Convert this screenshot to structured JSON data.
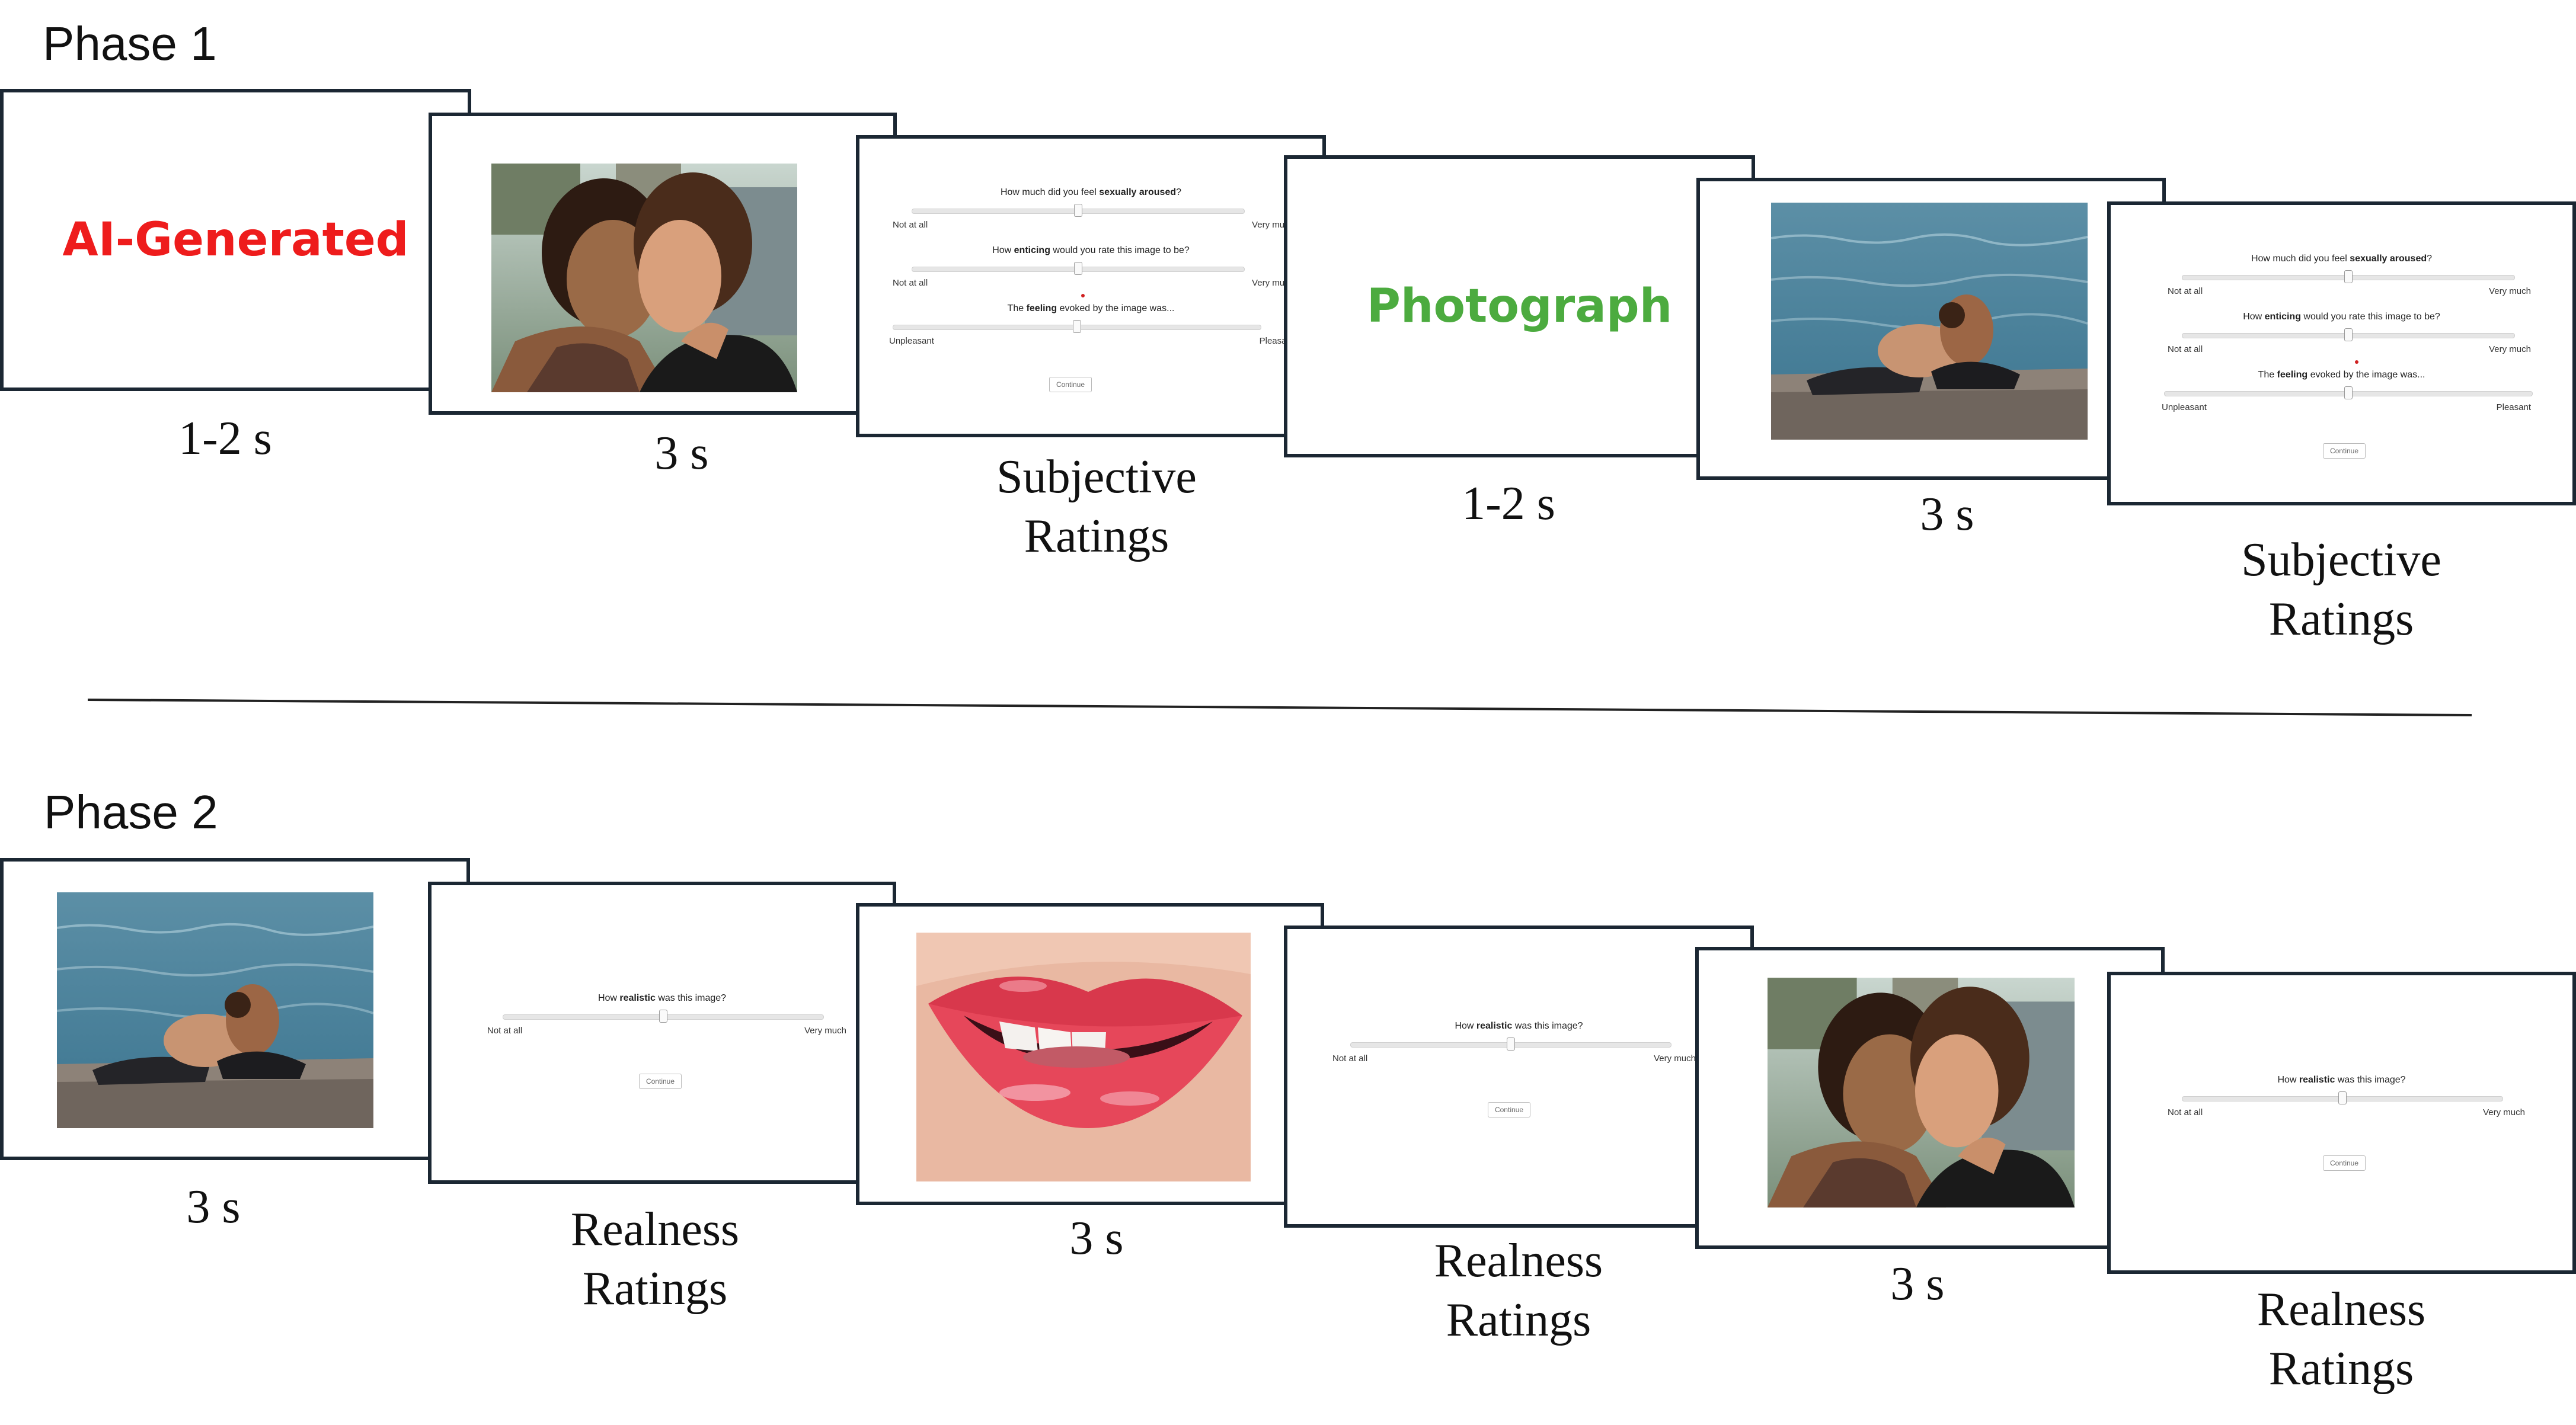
{
  "phase1": {
    "title": "Phase 1",
    "cue_ai": {
      "text": "AI-Generated",
      "color": "#ee1c1c"
    },
    "cue_photo": {
      "text": "Photograph",
      "color": "#4cab3f"
    },
    "captions": {
      "cue_ai": "1-2 s",
      "image_1": "3 s",
      "ratings_1_line1": "Subjective",
      "ratings_1_line2": "Ratings",
      "cue_photo": "1-2 s",
      "image_2": "3 s",
      "ratings_2_line1": "Subjective",
      "ratings_2_line2": "Ratings"
    }
  },
  "phase2": {
    "title": "Phase 2",
    "captions": {
      "image_1": "3 s",
      "ratings_1_line1": "Realness",
      "ratings_1_line2": "Ratings",
      "image_2": "3 s",
      "ratings_2_line1": "Realness",
      "ratings_2_line2": "Ratings",
      "image_3": "3 s",
      "ratings_3_line1": "Realness",
      "ratings_3_line2": "Ratings"
    }
  },
  "subjective_form": {
    "q1_pre": "How much did you feel ",
    "q1_bold": "sexually aroused",
    "q1_post": "?",
    "q2_pre": "How ",
    "q2_bold": "enticing",
    "q2_post": " would you rate this image to be?",
    "q3_pre": "The ",
    "q3_bold": "feeling",
    "q3_post": " evoked by the image was...",
    "low_1": "Not at all",
    "high_1": "Very much",
    "low_2": "Not at all",
    "high_2": "Very much",
    "low_3": "Unpleasant",
    "high_3": "Pleasant",
    "continue": "Continue"
  },
  "realness_form": {
    "q_pre": "How ",
    "q_bold": "realistic",
    "q_post": " was this image?",
    "low": "Not at all",
    "high": "Very much",
    "continue": "Continue"
  },
  "photos": {
    "kiss": "kissing-couple-photo",
    "beach": "beach-couple-photo",
    "lips": "lips-closeup-photo"
  }
}
